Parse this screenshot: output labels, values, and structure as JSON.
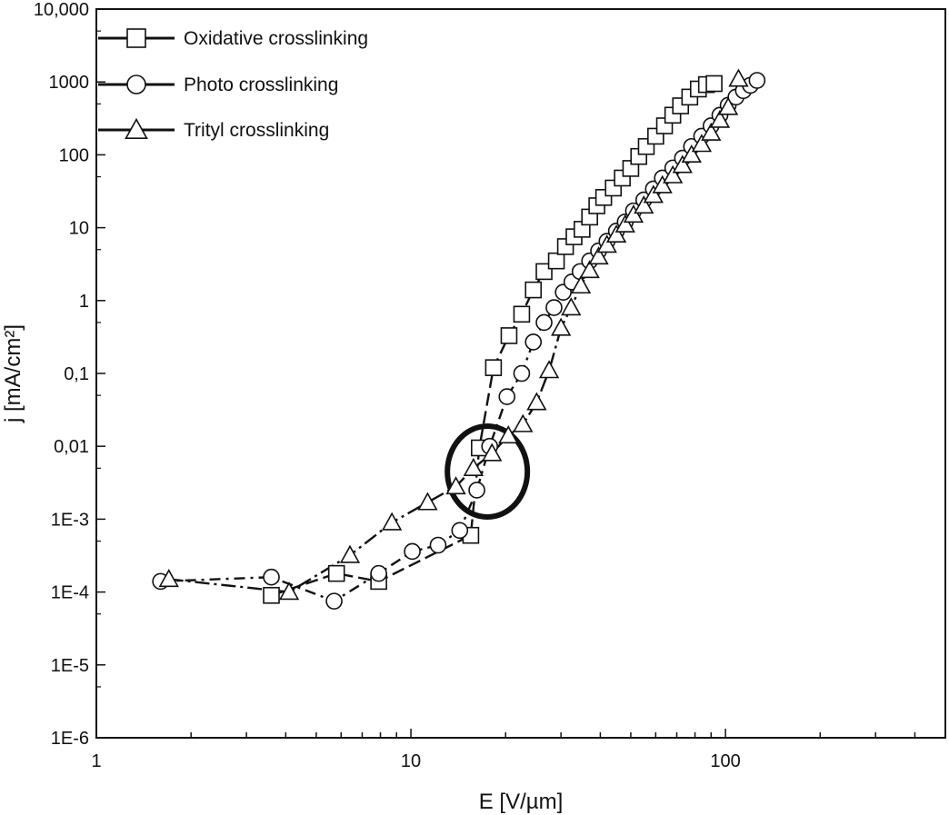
{
  "chart_data": {
    "type": "scatter",
    "x_scale": "log",
    "y_scale": "log",
    "xlabel": "E [V/µm]",
    "ylabel": "j [mA/cm²]",
    "xlim": [
      1,
      500
    ],
    "ylim": [
      1e-06,
      10000
    ],
    "x_ticks": [
      {
        "value": 1,
        "label": "1"
      },
      {
        "value": 10,
        "label": "10"
      },
      {
        "value": 100,
        "label": "100"
      }
    ],
    "y_ticks": [
      {
        "value": 10000,
        "label": "10,000"
      },
      {
        "value": 1000,
        "label": "1000"
      },
      {
        "value": 100,
        "label": "100"
      },
      {
        "value": 10,
        "label": "10"
      },
      {
        "value": 1,
        "label": "1"
      },
      {
        "value": 0.1,
        "label": "0,1"
      },
      {
        "value": 0.01,
        "label": "0,01"
      },
      {
        "value": 0.001,
        "label": "1E-3"
      },
      {
        "value": 0.0001,
        "label": "1E-4"
      },
      {
        "value": 1e-05,
        "label": "1E-5"
      },
      {
        "value": 1e-06,
        "label": "1E-6"
      }
    ],
    "legend_position": "top-left",
    "grid": false,
    "series": [
      {
        "name": "Oxidative crosslinking",
        "marker": "square",
        "x": [
          3.6,
          5.8,
          7.9,
          15.5,
          16.5,
          18.3,
          20.5,
          22.5,
          24.5,
          26.5,
          29,
          31,
          33,
          35,
          37,
          39,
          41,
          44,
          47,
          50,
          53,
          56,
          60,
          64,
          68,
          72,
          77,
          82,
          87,
          92
        ],
        "y": [
          9e-05,
          0.00018,
          0.00014,
          0.0006,
          0.0095,
          0.12,
          0.33,
          0.65,
          1.4,
          2.5,
          3.5,
          5.5,
          7.5,
          9.5,
          14,
          20,
          26,
          35,
          48,
          65,
          95,
          130,
          180,
          250,
          350,
          470,
          620,
          800,
          920,
          950
        ]
      },
      {
        "name": "Photo crosslinking",
        "marker": "circle",
        "x": [
          1.6,
          3.6,
          5.7,
          7.9,
          10.1,
          12.2,
          14.3,
          16.2,
          17.8,
          20.2,
          22.5,
          24.5,
          26.5,
          28.5,
          30.5,
          32.5,
          34.5,
          37,
          39.5,
          42,
          45,
          48,
          51,
          55,
          59,
          63,
          68,
          73,
          78,
          84,
          90,
          96,
          102,
          108,
          114,
          120,
          126
        ],
        "y": [
          0.00014,
          0.00016,
          7.5e-05,
          0.00018,
          0.00036,
          0.00044,
          0.0007,
          0.0025,
          0.01,
          0.048,
          0.1,
          0.27,
          0.5,
          0.8,
          1.3,
          1.8,
          2.5,
          3.5,
          4.8,
          6.5,
          9,
          12,
          17,
          24,
          34,
          48,
          66,
          90,
          130,
          180,
          250,
          350,
          480,
          620,
          760,
          900,
          1050
        ]
      },
      {
        "name": "Trityl crosslinking",
        "marker": "triangle",
        "x": [
          1.7,
          4.1,
          6.4,
          8.7,
          11.3,
          13.9,
          15.8,
          18.1,
          20.4,
          22.7,
          25.1,
          27.5,
          30,
          32.3,
          34.7,
          37,
          39.5,
          42,
          45,
          48,
          51,
          55,
          59,
          63,
          68,
          73,
          78,
          84,
          90,
          96,
          102,
          110
        ],
        "y": [
          0.00015,
          0.0001,
          0.00032,
          0.0009,
          0.0017,
          0.0028,
          0.005,
          0.008,
          0.014,
          0.02,
          0.04,
          0.11,
          0.42,
          0.8,
          1.6,
          2.6,
          4,
          5.8,
          8,
          11,
          15,
          20,
          28,
          38,
          52,
          72,
          100,
          140,
          200,
          300,
          450,
          1100
        ]
      }
    ],
    "annotation": {
      "shape": "ellipse",
      "center_x": 17.5,
      "center_y": 0.0045
    }
  }
}
